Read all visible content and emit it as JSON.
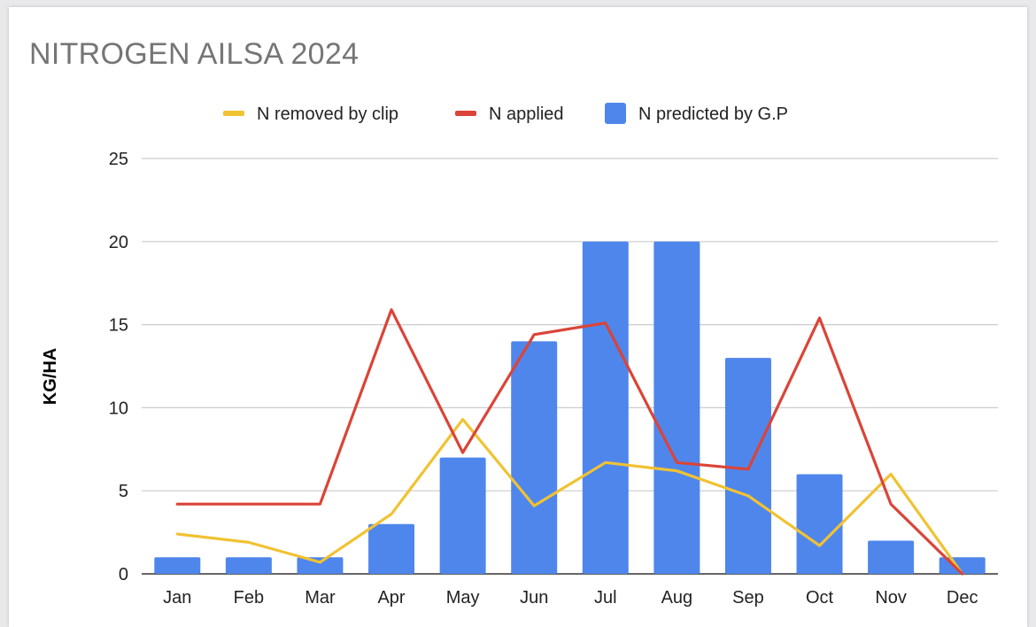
{
  "chart_data": {
    "type": "bar",
    "title": "NITROGEN AILSA 2024",
    "ylabel": "KG/HA",
    "xlabel": "",
    "ylim": [
      0,
      25
    ],
    "yticks": [
      0,
      5,
      10,
      15,
      20,
      25
    ],
    "grid": true,
    "legend_position": "top",
    "categories": [
      "Jan",
      "Feb",
      "Mar",
      "Apr",
      "May",
      "Jun",
      "Jul",
      "Aug",
      "Sep",
      "Oct",
      "Nov",
      "Dec"
    ],
    "series": [
      {
        "name": "N removed by clip",
        "kind": "line",
        "color": "#f1c232",
        "values": [
          2.4,
          1.9,
          0.7,
          3.6,
          9.3,
          4.1,
          6.7,
          6.2,
          4.7,
          1.7,
          6.0,
          0
        ]
      },
      {
        "name": "N applied",
        "kind": "line",
        "color": "#db4437",
        "values": [
          4.2,
          4.2,
          4.2,
          15.9,
          7.3,
          14.4,
          15.1,
          6.7,
          6.3,
          15.4,
          4.2,
          0
        ]
      },
      {
        "name": "N predicted by G.P",
        "kind": "bar",
        "color": "#4f86ec",
        "values": [
          1,
          1,
          1,
          3,
          7,
          14,
          20,
          20,
          13,
          6,
          2,
          1
        ]
      }
    ]
  }
}
